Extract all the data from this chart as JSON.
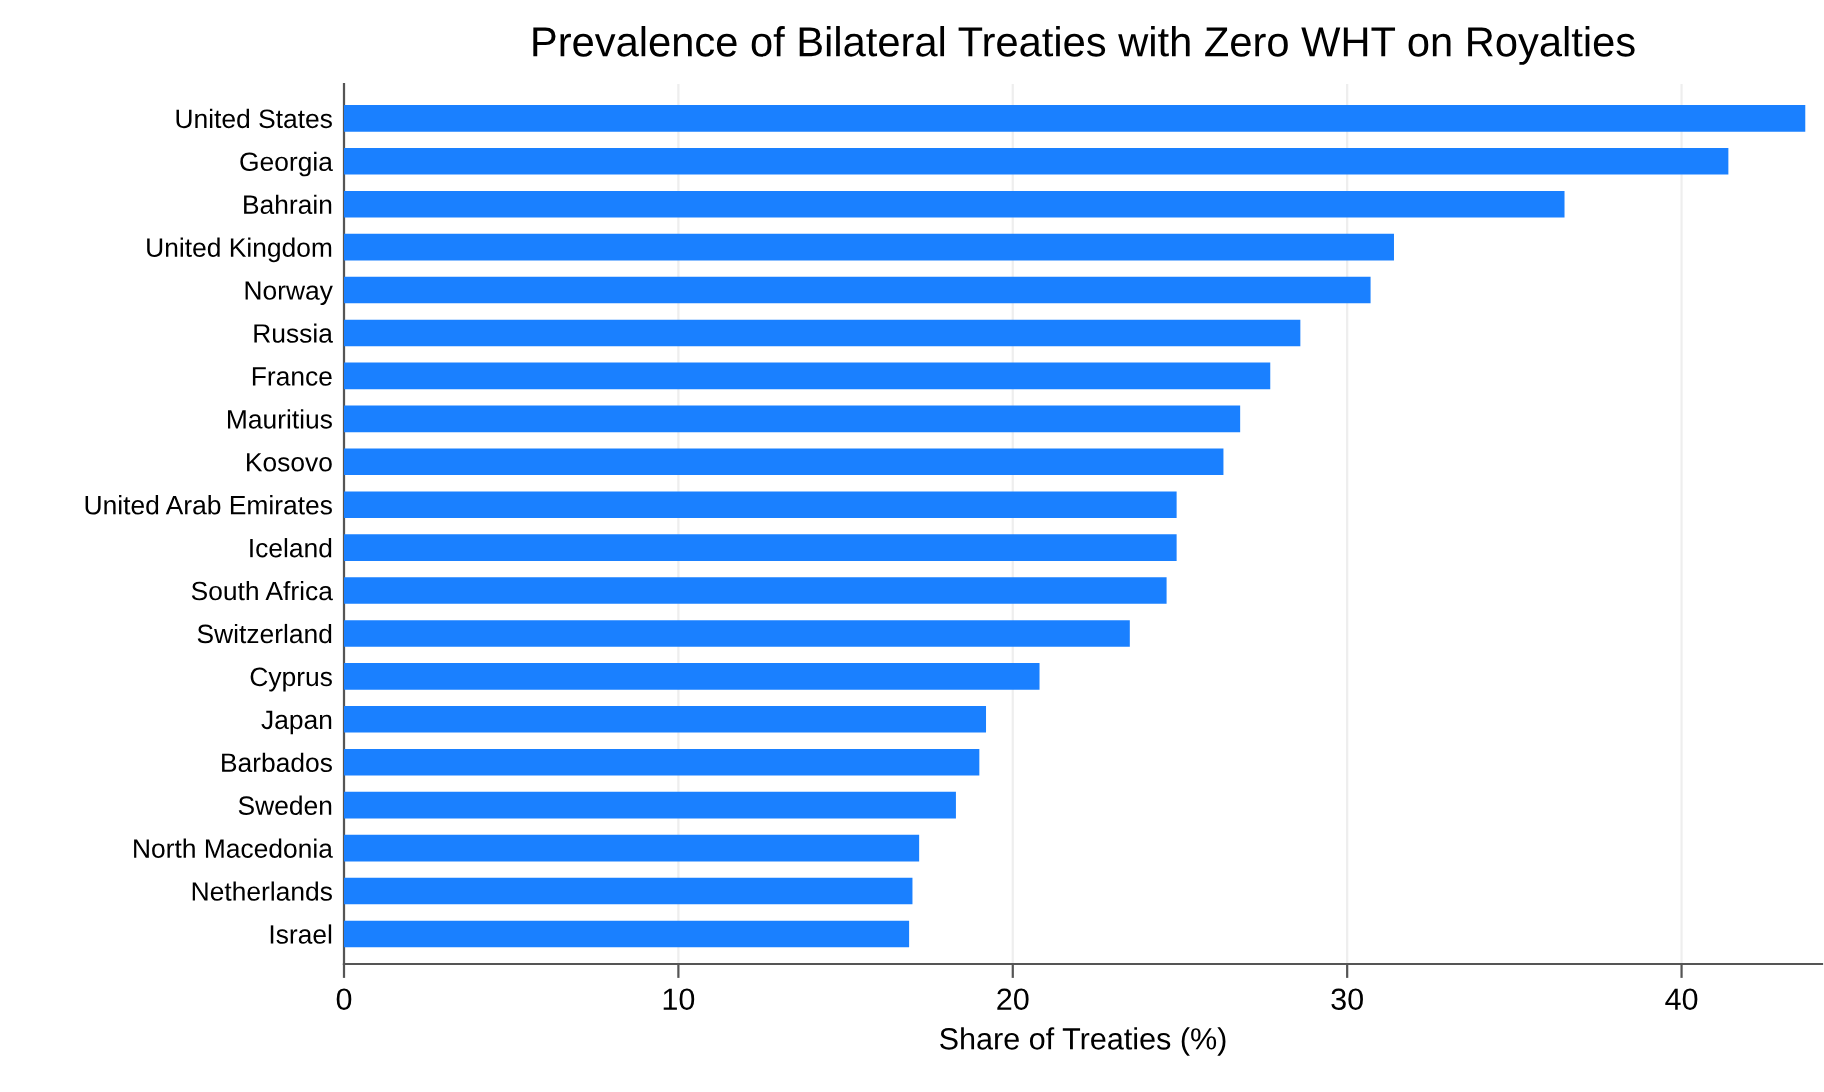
{
  "chart_data": {
    "type": "bar",
    "orientation": "horizontal",
    "title": "Prevalence of Bilateral Treaties with Zero WHT on Royalties",
    "xlabel": "Share of Treaties (%)",
    "categories": [
      "United States",
      "Georgia",
      "Bahrain",
      "United Kingdom",
      "Norway",
      "Russia",
      "France",
      "Mauritius",
      "Kosovo",
      "United Arab Emirates",
      "Iceland",
      "South Africa",
      "Switzerland",
      "Cyprus",
      "Japan",
      "Barbados",
      "Sweden",
      "North Macedonia",
      "Netherlands",
      "Israel"
    ],
    "values": [
      43.7,
      41.4,
      36.5,
      31.4,
      30.7,
      28.6,
      27.7,
      26.8,
      26.3,
      24.9,
      24.9,
      24.6,
      23.5,
      20.8,
      19.2,
      19.0,
      18.3,
      17.2,
      17.0,
      16.9
    ],
    "color": "#1a80ff",
    "xlim": [
      0,
      44.2
    ],
    "xticks": [
      0,
      10,
      20,
      30,
      40
    ],
    "grid": "x"
  }
}
